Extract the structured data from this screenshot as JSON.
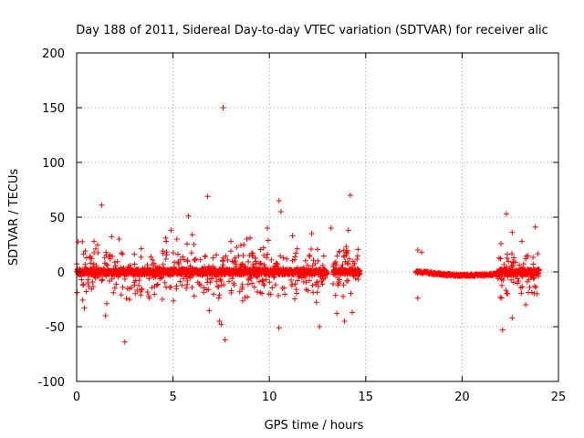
{
  "chart_data": {
    "type": "scatter",
    "title": "Day 188 of 2011, Sidereal Day-to-day VTEC variation (SDTVAR) for receiver alic",
    "xlabel": "GPS time / hours",
    "ylabel": "SDTVAR / TECUs",
    "xlim": [
      0,
      25
    ],
    "ylim": [
      -100,
      200
    ],
    "x_ticks": [
      0,
      5,
      10,
      15,
      20,
      25
    ],
    "y_ticks": [
      -100,
      -50,
      0,
      50,
      100,
      150,
      200
    ],
    "x_tick_labels": [
      "0",
      "5",
      "10",
      "15",
      "20",
      "25"
    ],
    "y_tick_labels": [
      "-100",
      "-50",
      "0",
      "50",
      "100",
      "150",
      "200"
    ],
    "grid": true,
    "marker": "+",
    "series": [
      {
        "name": "SDTVAR",
        "color": "#ff0000",
        "segments": [
          {
            "x_start": 0.0,
            "x_end": 13.0,
            "spread": 12
          },
          {
            "x_start": 13.3,
            "x_end": 14.7,
            "spread": 14
          },
          {
            "x_start": 17.6,
            "x_end": 21.8,
            "spread": 2
          },
          {
            "x_start": 21.8,
            "x_end": 24.0,
            "spread": 10
          }
        ],
        "outliers": [
          [
            7.6,
            150
          ],
          [
            6.8,
            69
          ],
          [
            1.3,
            61
          ],
          [
            10.5,
            65
          ],
          [
            14.2,
            70
          ],
          [
            10.6,
            55
          ],
          [
            5.8,
            51
          ],
          [
            22.3,
            53
          ],
          [
            23.8,
            41
          ],
          [
            13.2,
            40
          ],
          [
            2.5,
            -64
          ],
          [
            7.7,
            -62
          ],
          [
            0.4,
            -33
          ],
          [
            1.5,
            -40
          ],
          [
            7.4,
            -45
          ],
          [
            7.5,
            -48
          ],
          [
            10.5,
            -51
          ],
          [
            12.6,
            -50
          ],
          [
            13.9,
            -45
          ],
          [
            14.3,
            -37
          ],
          [
            22.1,
            -53
          ],
          [
            22.6,
            -42
          ],
          [
            23.3,
            -30
          ],
          [
            0.9,
            28
          ],
          [
            2.2,
            30
          ],
          [
            4.9,
            38
          ],
          [
            5.2,
            30
          ],
          [
            6.0,
            34
          ],
          [
            8.0,
            28
          ],
          [
            9.0,
            31
          ],
          [
            9.9,
            40
          ],
          [
            11.2,
            33
          ],
          [
            12.2,
            35
          ],
          [
            14.1,
            38
          ],
          [
            13.5,
            -38
          ],
          [
            17.7,
            20
          ],
          [
            17.9,
            18
          ],
          [
            17.7,
            -24
          ],
          [
            22.6,
            36
          ],
          [
            23.1,
            28
          ]
        ]
      }
    ]
  }
}
